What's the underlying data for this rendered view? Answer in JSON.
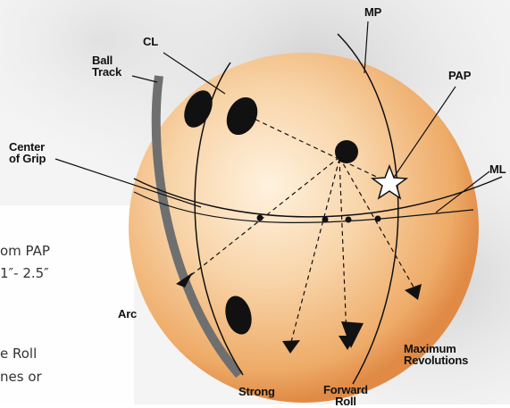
{
  "labels": {
    "mp": "MP",
    "cl": "CL",
    "ball_track": "Ball\nTrack",
    "pap": "PAP",
    "center_of_grip": "Center\nof Grip",
    "ml": "ML",
    "arc": "Arc",
    "strong": "Strong",
    "forward_roll": "Forward\nRoll",
    "maximum_revolutions": "Maximum\nRevolutions"
  },
  "text_fragments": {
    "line1": "om PAP",
    "line2": "1″- 2.5″",
    "line3": "e Roll",
    "line4": "nes or"
  },
  "colors": {
    "ball_center": "#fbe3c4",
    "ball_mid": "#f3c89a",
    "ball_edge": "#e89a55",
    "track": "#777777",
    "ink": "#111111",
    "background_shade": "#d9d9d9"
  },
  "icons": {
    "pap_marker": "star-icon",
    "arrow_head": "triangle-arrowhead"
  }
}
